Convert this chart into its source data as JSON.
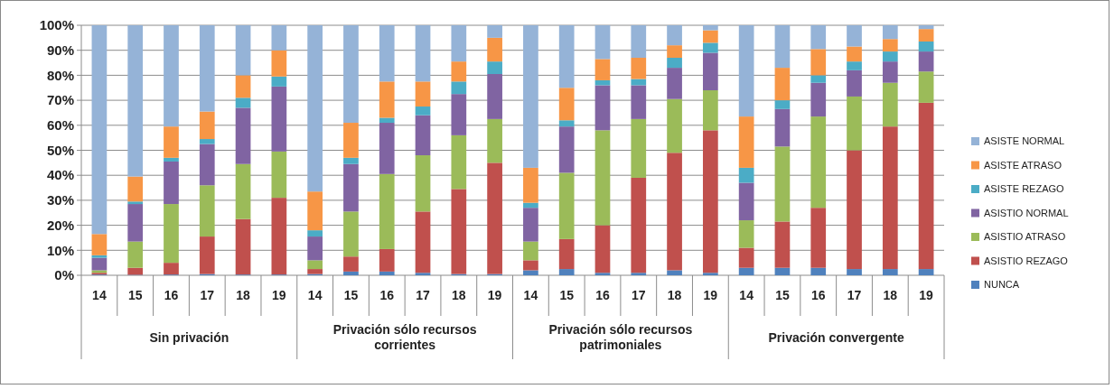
{
  "chart_data": {
    "type": "bar",
    "stacked": true,
    "categories": [
      "14",
      "15",
      "16",
      "17",
      "18",
      "19",
      "14",
      "15",
      "16",
      "17",
      "18",
      "19",
      "14",
      "15",
      "16",
      "17",
      "18",
      "19",
      "14",
      "15",
      "16",
      "17",
      "18",
      "19"
    ],
    "annotations": [
      "Sin privación",
      "Privación sólo recursos corrientes",
      "Privación sólo recursos patrimoniales",
      "Privación convergente"
    ],
    "ylim": [
      0,
      100
    ],
    "yticks": [
      {
        "value": 0,
        "label": "0%"
      },
      {
        "value": 10,
        "label": "10%"
      },
      {
        "value": 20,
        "label": "20%"
      },
      {
        "value": 30,
        "label": "30%"
      },
      {
        "value": 40,
        "label": "40%"
      },
      {
        "value": 50,
        "label": "50%"
      },
      {
        "value": 60,
        "label": "60%"
      },
      {
        "value": 70,
        "label": "70%"
      },
      {
        "value": 80,
        "label": "80%"
      },
      {
        "value": 90,
        "label": "90%"
      },
      {
        "value": 100,
        "label": "100%"
      }
    ],
    "grid": "y",
    "legend": "right",
    "series": [
      {
        "name": "NUNCA",
        "color": "#4f81bd",
        "values": [
          0.3,
          0.2,
          0.3,
          0.5,
          0.3,
          0.3,
          0.5,
          1.5,
          1.5,
          1,
          0.5,
          0.5,
          2,
          2.5,
          1,
          1,
          2,
          1,
          3,
          3,
          3,
          2.5,
          2.5,
          2.5
        ]
      },
      {
        "name": "ASISTIO REZAGO",
        "color": "#c0504d",
        "values": [
          0.7,
          2.8,
          4.7,
          15,
          22.2,
          30.7,
          2,
          6,
          9,
          24.5,
          34,
          44.5,
          4,
          12,
          19,
          38,
          47,
          57,
          8,
          18.5,
          24,
          47.5,
          57,
          66.5
        ]
      },
      {
        "name": "ASISTIO ATRASO",
        "color": "#9bbb59",
        "values": [
          1,
          10.5,
          23.5,
          20.5,
          22,
          18.5,
          3.5,
          18,
          30,
          22.5,
          21.5,
          17.5,
          7.5,
          26.5,
          38,
          23.5,
          21.5,
          16,
          11,
          30,
          36.5,
          21.5,
          17.5,
          12.5
        ]
      },
      {
        "name": "ASISTIO NORMAL",
        "color": "#8064a2",
        "values": [
          5,
          15,
          17,
          16.5,
          22.5,
          26,
          9.5,
          19,
          20.5,
          16,
          16.5,
          18,
          13.5,
          18.5,
          18,
          13.5,
          12.5,
          15,
          15,
          15,
          13.5,
          10.5,
          8.5,
          8
        ]
      },
      {
        "name": "ASISTE REZAGO",
        "color": "#4bacc6",
        "values": [
          1,
          1,
          1.5,
          2,
          4,
          4,
          2.5,
          2.5,
          2,
          3.5,
          5,
          5,
          2,
          2.5,
          2,
          2.5,
          4,
          4,
          6,
          3.5,
          3,
          3.5,
          4,
          4
        ]
      },
      {
        "name": "ASISTE ATRASO",
        "color": "#f79646",
        "values": [
          8.5,
          10,
          12.5,
          11,
          9,
          10.5,
          15.5,
          14,
          14.5,
          10,
          8,
          9.5,
          14,
          13,
          8.5,
          8.5,
          5,
          5,
          20.5,
          13,
          10.5,
          6,
          5,
          5
        ]
      },
      {
        "name": "ASISTE NORMAL",
        "color": "#95b3d7",
        "values": [
          83.5,
          60.5,
          40.5,
          34.5,
          20,
          10,
          66.5,
          39,
          22.5,
          22.5,
          14.5,
          5,
          57,
          25,
          13.5,
          13,
          8,
          2,
          36.5,
          17,
          9.5,
          8.5,
          5.5,
          1.5
        ]
      }
    ]
  }
}
